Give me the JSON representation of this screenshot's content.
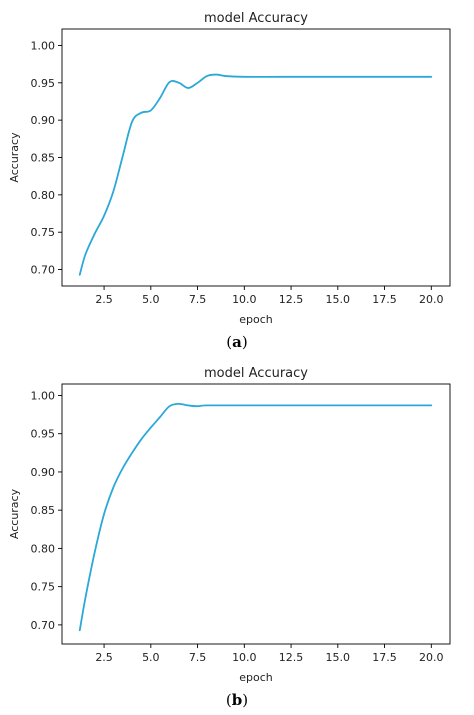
{
  "chart_data": [
    {
      "type": "line",
      "title": "model Accuracy",
      "xlabel": "epoch",
      "ylabel": "Accuracy",
      "caption_letter": "a",
      "xlim": [
        0.25,
        21.0
      ],
      "ylim": [
        0.678,
        1.022
      ],
      "x_ticks": [
        "2.5",
        "5.0",
        "7.5",
        "10.0",
        "12.5",
        "15.0",
        "17.5",
        "20.0"
      ],
      "y_ticks": [
        "0.70",
        "0.75",
        "0.80",
        "0.85",
        "0.90",
        "0.95",
        "1.00"
      ],
      "grid": false,
      "series": [
        {
          "color": "#2aa8d8",
          "points": [
            [
              1.2,
              0.693
            ],
            [
              1.5,
              0.72
            ],
            [
              2.0,
              0.748
            ],
            [
              2.5,
              0.772
            ],
            [
              3.0,
              0.805
            ],
            [
              3.5,
              0.852
            ],
            [
              4.0,
              0.898
            ],
            [
              4.5,
              0.91
            ],
            [
              5.0,
              0.913
            ],
            [
              5.5,
              0.93
            ],
            [
              6.0,
              0.951
            ],
            [
              6.5,
              0.95
            ],
            [
              7.0,
              0.943
            ],
            [
              7.5,
              0.95
            ],
            [
              8.0,
              0.959
            ],
            [
              8.5,
              0.961
            ],
            [
              9.0,
              0.959
            ],
            [
              10.0,
              0.958
            ],
            [
              12.0,
              0.958
            ],
            [
              15.0,
              0.958
            ],
            [
              17.5,
              0.958
            ],
            [
              20.0,
              0.958
            ]
          ]
        }
      ]
    },
    {
      "type": "line",
      "title": "model Accuracy",
      "xlabel": "epoch",
      "ylabel": "Accuracy",
      "caption_letter": "b",
      "xlim": [
        0.25,
        21.0
      ],
      "ylim": [
        0.675,
        1.015
      ],
      "x_ticks": [
        "2.5",
        "5.0",
        "7.5",
        "10.0",
        "12.5",
        "15.0",
        "17.5",
        "20.0"
      ],
      "y_ticks": [
        "0.70",
        "0.75",
        "0.80",
        "0.85",
        "0.90",
        "0.95",
        "1.00"
      ],
      "grid": false,
      "series": [
        {
          "color": "#2aa8d8",
          "points": [
            [
              1.2,
              0.693
            ],
            [
              1.5,
              0.735
            ],
            [
              2.0,
              0.795
            ],
            [
              2.5,
              0.845
            ],
            [
              3.0,
              0.88
            ],
            [
              3.5,
              0.905
            ],
            [
              4.0,
              0.925
            ],
            [
              4.5,
              0.943
            ],
            [
              5.0,
              0.958
            ],
            [
              5.5,
              0.972
            ],
            [
              6.0,
              0.986
            ],
            [
              6.5,
              0.989
            ],
            [
              7.0,
              0.987
            ],
            [
              7.5,
              0.986
            ],
            [
              8.0,
              0.987
            ],
            [
              10.0,
              0.987
            ],
            [
              12.5,
              0.987
            ],
            [
              15.0,
              0.987
            ],
            [
              17.5,
              0.987
            ],
            [
              20.0,
              0.987
            ]
          ]
        }
      ]
    }
  ]
}
